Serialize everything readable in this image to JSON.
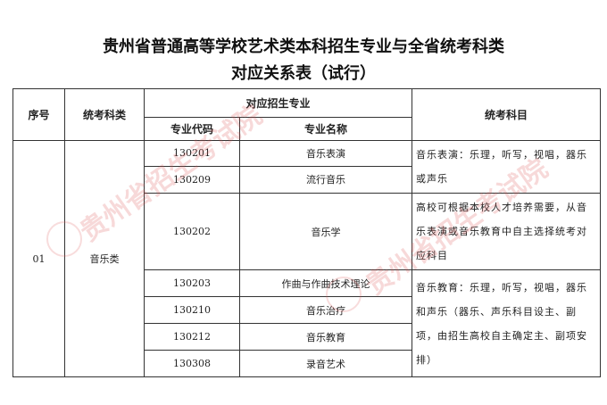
{
  "title": {
    "line1": "贵州省普通高等学校艺术类本科招生专业与全省统考科类",
    "line2": "对应关系表（试行）"
  },
  "headers": {
    "seq": "序号",
    "category": "统考科类",
    "majors": "对应招生专业",
    "code": "专业代码",
    "name": "专业名称",
    "subjects": "统考科目"
  },
  "row": {
    "seq": "01",
    "category": "音乐类"
  },
  "majors": [
    {
      "code": "130201",
      "name": "音乐表演"
    },
    {
      "code": "130209",
      "name": "流行音乐"
    },
    {
      "code": "130202",
      "name": "音乐学"
    },
    {
      "code": "130203",
      "name": "作曲与作曲技术理论"
    },
    {
      "code": "130210",
      "name": "音乐治疗"
    },
    {
      "code": "130212",
      "name": "音乐教育"
    },
    {
      "code": "130308",
      "name": "录音艺术"
    }
  ],
  "subjects": [
    "音乐表演：乐理，听写，视唱，器乐或声乐",
    "高校可根据本校人才培养需要，从音乐表演或音乐教育中自主选择统考对应科目",
    "音乐教育：乐理，听写，视唱，器乐和声乐（器乐、声乐科目设主、副项，由招生高校自主确定主、副项安排）"
  ],
  "watermark": "贵州省招生考试院",
  "watermark_color": "#dc5050"
}
